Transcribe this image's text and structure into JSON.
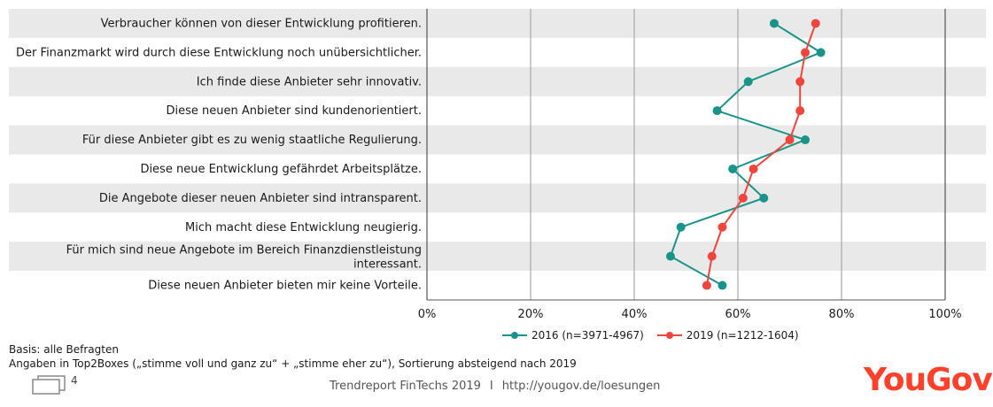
{
  "chart_data": {
    "type": "line",
    "orientation": "horizontal",
    "categories": [
      "Verbraucher können von dieser Entwicklung profitieren.",
      "Der Finanzmarkt wird durch diese Entwicklung noch unübersichtlicher.",
      "Ich finde diese Anbieter sehr innovativ.",
      "Diese neuen Anbieter sind kundenorientiert.",
      "Für diese Anbieter gibt es zu wenig staatliche Regulierung.",
      "Diese neue Entwicklung gefährdet Arbeitsplätze.",
      "Die Angebote dieser neuen Anbieter sind intransparent.",
      "Mich macht diese Entwicklung neugierig.",
      "Für mich sind neue Angebote im Bereich Finanzdienstleistung interessant.",
      "Diese neuen Anbieter bieten mir keine Vorteile."
    ],
    "series": [
      {
        "name": "2016 (n=3971-4967)",
        "color": "#1a948a",
        "values": [
          67,
          76,
          62,
          56,
          73,
          59,
          65,
          49,
          47,
          57
        ]
      },
      {
        "name": "2019 (n=1212-1604)",
        "color": "#f0453c",
        "values": [
          75,
          73,
          72,
          72,
          70,
          63,
          61,
          57,
          55,
          54
        ]
      }
    ],
    "xlim": [
      0,
      100
    ],
    "x_ticks": [
      "0%",
      "20%",
      "40%",
      "60%",
      "80%",
      "100%"
    ],
    "legend_position": "bottom",
    "grid": true
  },
  "notes": {
    "basis": "Basis: alle Befragten",
    "angaben": "Angaben in Top2Boxes („stimme voll und ganz zu“ + „stimme eher zu“), Sortierung absteigend nach 2019"
  },
  "footer": {
    "page_number": "4",
    "report": "Trendreport FinTechs 2019",
    "separator": "I",
    "url": "http://yougov.de/loesungen",
    "brand": "YouGov"
  }
}
